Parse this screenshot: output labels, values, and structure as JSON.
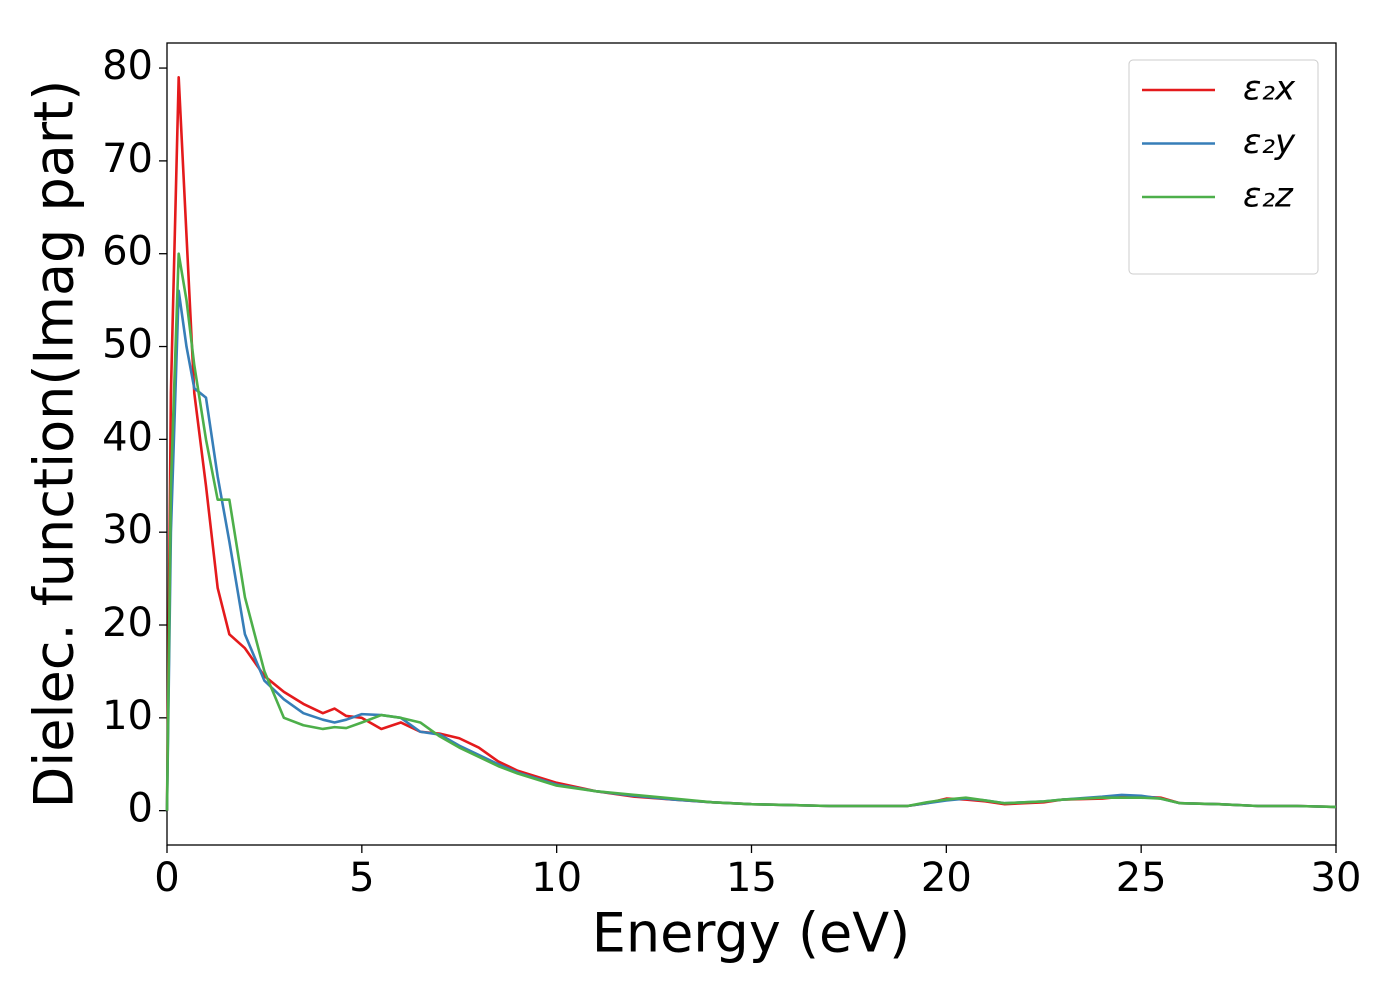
{
  "chart_data": {
    "type": "line",
    "xlabel": "Energy (eV)",
    "ylabel": "Dielec. function(Imag part)",
    "x": [
      0,
      0.1,
      0.3,
      0.5,
      0.7,
      1.0,
      1.3,
      1.6,
      2.0,
      2.5,
      3.0,
      3.5,
      4.0,
      4.3,
      4.6,
      5.0,
      5.5,
      6.0,
      6.5,
      7.0,
      7.5,
      8.0,
      8.5,
      9.0,
      10,
      11,
      12,
      13,
      14,
      15,
      16,
      17,
      18,
      19,
      19.5,
      20,
      20.5,
      21,
      21.5,
      22,
      22.5,
      23,
      24,
      24.5,
      25,
      25.5,
      26,
      27,
      28,
      29,
      30
    ],
    "series": [
      {
        "name": "ε₂x",
        "color": "#e41a1c",
        "values": [
          0,
          45,
          79,
          62,
          45,
          35,
          24,
          19,
          17.5,
          14.5,
          12.8,
          11.5,
          10.5,
          11,
          10.2,
          10,
          8.8,
          9.5,
          8.5,
          8.3,
          7.8,
          6.8,
          5.3,
          4.3,
          3,
          2.1,
          1.5,
          1.2,
          0.9,
          0.7,
          0.6,
          0.5,
          0.5,
          0.5,
          0.8,
          1.3,
          1.2,
          1.0,
          0.7,
          0.8,
          0.9,
          1.2,
          1.3,
          1.5,
          1.5,
          1.4,
          0.8,
          0.7,
          0.5,
          0.5,
          0.4
        ]
      },
      {
        "name": "ε₂y",
        "color": "#377eb8",
        "values": [
          0,
          30,
          56,
          50,
          45.5,
          44.5,
          36,
          29,
          19,
          14,
          12,
          10.5,
          9.8,
          9.5,
          9.8,
          10.4,
          10.3,
          10,
          8.5,
          8.2,
          7,
          6,
          5,
          4.1,
          2.8,
          2.1,
          1.6,
          1.2,
          0.9,
          0.7,
          0.6,
          0.5,
          0.5,
          0.5,
          0.8,
          1.1,
          1.3,
          1.1,
          0.8,
          0.9,
          1.0,
          1.2,
          1.5,
          1.7,
          1.6,
          1.3,
          0.8,
          0.7,
          0.5,
          0.5,
          0.4
        ]
      },
      {
        "name": "ε₂z",
        "color": "#4daf4a",
        "values": [
          0,
          35,
          60,
          55,
          48,
          40,
          33.5,
          33.5,
          23,
          15,
          10,
          9.2,
          8.8,
          9,
          8.9,
          9.5,
          10.3,
          10,
          9.5,
          8,
          6.8,
          5.8,
          4.8,
          4.0,
          2.7,
          2.1,
          1.7,
          1.3,
          0.9,
          0.7,
          0.6,
          0.5,
          0.5,
          0.5,
          0.9,
          1.2,
          1.4,
          1.1,
          0.8,
          0.9,
          1.0,
          1.2,
          1.4,
          1.4,
          1.4,
          1.3,
          0.8,
          0.7,
          0.5,
          0.5,
          0.4
        ]
      }
    ],
    "xlim": [
      0,
      30
    ],
    "xticks": [
      0,
      5,
      10,
      15,
      20,
      25,
      30
    ],
    "ylim": [
      -3.7,
      82.7
    ],
    "yticks": [
      0,
      10,
      20,
      30,
      40,
      50,
      60,
      70,
      80
    ],
    "grid": false,
    "legend": "upper right"
  }
}
